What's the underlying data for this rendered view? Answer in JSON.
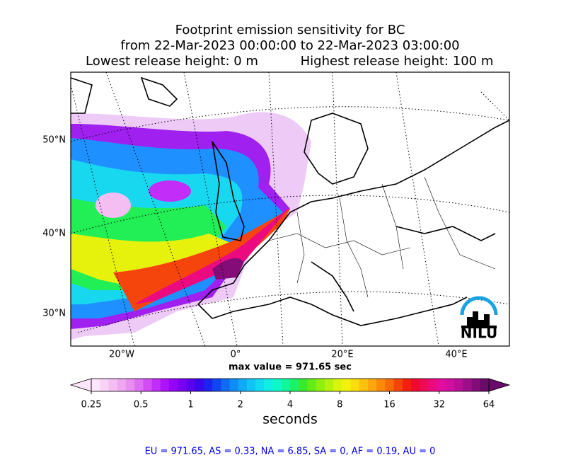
{
  "title": [
    "Footprint emission sensitivity for BC",
    "from 22-Mar-2023 00:00:00 to 22-Mar-2023 03:00:00"
  ],
  "release": {
    "lowest": "Lowest release height: 0 m",
    "highest": "Highest release height: 100 m"
  },
  "map": {
    "lat_labels": [
      "50°N",
      "40°N",
      "30°N"
    ],
    "lon_labels": [
      "20°W",
      "0°",
      "20°E",
      "40°E"
    ],
    "max_value": "max value = 971.65 sec",
    "logo": "NILU"
  },
  "colorbar": {
    "scale": "log",
    "clim": [
      0.25,
      64
    ],
    "ticks": [
      0.25,
      0.5,
      1,
      2,
      4,
      8,
      16,
      32,
      64
    ],
    "label": "seconds",
    "extend": "both",
    "colors": [
      "#fde6fb",
      "#f9d2f6",
      "#f4bef3",
      "#eea7f0",
      "#e88ef0",
      "#de6ff2",
      "#d24ef4",
      "#c22ef7",
      "#ad12f8",
      "#9405f7",
      "#7a00f3",
      "#5b00ee",
      "#3a06ec",
      "#1d22ee",
      "#1145f1",
      "#0f6af4",
      "#108cf6",
      "#11aaf6",
      "#12c4f5",
      "#12dbf1",
      "#10eee5",
      "#0ff8c8",
      "#10f79a",
      "#1bf267",
      "#38ea2e",
      "#64ec16",
      "#8ff00f",
      "#b5f30e",
      "#d9f50d",
      "#f4f20c",
      "#fbdc0c",
      "#fcc20c",
      "#fca70b",
      "#fb8a0b",
      "#f96a0b",
      "#f6450c",
      "#f3200f",
      "#f00a2d",
      "#ee0a57",
      "#eb0a80",
      "#e30c9f",
      "#d10e9f",
      "#b80f96",
      "#9e0e88",
      "#830c78",
      "#680a67"
    ]
  },
  "footer": "EU = 971.65,  AS = 0.33,  NA = 6.85,  SA = 0,  AF = 0.19,  AU = 0"
}
